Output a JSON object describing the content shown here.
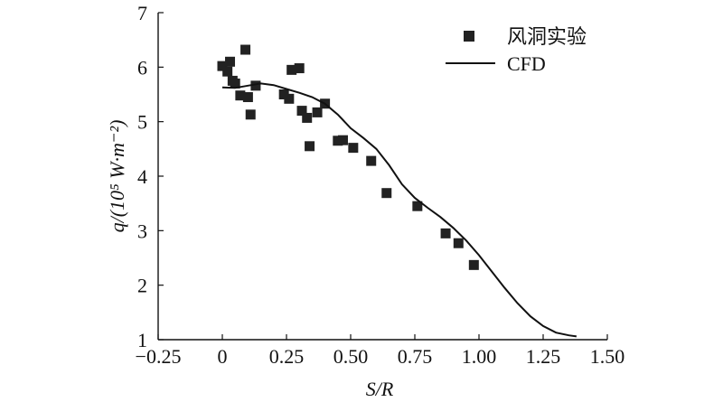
{
  "chart_data": {
    "type": "scatter",
    "xlabel": "S/R",
    "ylabel": "q/(10⁵ W·m⁻²)",
    "xlim": [
      -0.25,
      1.5
    ],
    "ylim": [
      1,
      7
    ],
    "x_ticks": [
      -0.25,
      0,
      0.25,
      0.5,
      0.75,
      1.0,
      1.25,
      1.5
    ],
    "x_tick_labels": [
      "−0.25",
      "0",
      "0.25",
      "0.50",
      "0.75",
      "1.00",
      "1.25",
      "1.50"
    ],
    "y_ticks": [
      1,
      2,
      3,
      4,
      5,
      6,
      7
    ],
    "y_tick_labels": [
      "1",
      "2",
      "3",
      "4",
      "5",
      "6",
      "7"
    ],
    "grid": false,
    "legend_position": "top-right",
    "series": [
      {
        "name": "风洞实验",
        "kind": "scatter",
        "marker": "square",
        "color": "#222222",
        "points": [
          [
            0.0,
            6.02
          ],
          [
            0.02,
            5.92
          ],
          [
            0.03,
            6.1
          ],
          [
            0.04,
            5.75
          ],
          [
            0.05,
            5.7
          ],
          [
            0.07,
            5.48
          ],
          [
            0.09,
            6.32
          ],
          [
            0.1,
            5.45
          ],
          [
            0.11,
            5.13
          ],
          [
            0.13,
            5.66
          ],
          [
            0.24,
            5.5
          ],
          [
            0.26,
            5.42
          ],
          [
            0.27,
            5.95
          ],
          [
            0.3,
            5.98
          ],
          [
            0.31,
            5.2
          ],
          [
            0.33,
            5.07
          ],
          [
            0.34,
            4.55
          ],
          [
            0.37,
            5.17
          ],
          [
            0.4,
            5.33
          ],
          [
            0.45,
            4.65
          ],
          [
            0.47,
            4.66
          ],
          [
            0.51,
            4.52
          ],
          [
            0.58,
            4.28
          ],
          [
            0.64,
            3.69
          ],
          [
            0.76,
            3.45
          ],
          [
            0.87,
            2.95
          ],
          [
            0.92,
            2.77
          ],
          [
            0.98,
            2.37
          ]
        ]
      },
      {
        "name": "CFD",
        "kind": "line",
        "color": "#111111",
        "points": [
          [
            0.0,
            5.63
          ],
          [
            0.05,
            5.62
          ],
          [
            0.1,
            5.66
          ],
          [
            0.15,
            5.7
          ],
          [
            0.2,
            5.67
          ],
          [
            0.25,
            5.6
          ],
          [
            0.3,
            5.53
          ],
          [
            0.35,
            5.45
          ],
          [
            0.4,
            5.33
          ],
          [
            0.45,
            5.13
          ],
          [
            0.5,
            4.88
          ],
          [
            0.55,
            4.7
          ],
          [
            0.6,
            4.5
          ],
          [
            0.65,
            4.2
          ],
          [
            0.7,
            3.85
          ],
          [
            0.75,
            3.6
          ],
          [
            0.8,
            3.42
          ],
          [
            0.85,
            3.25
          ],
          [
            0.9,
            3.05
          ],
          [
            0.95,
            2.82
          ],
          [
            1.0,
            2.55
          ],
          [
            1.05,
            2.25
          ],
          [
            1.1,
            1.95
          ],
          [
            1.15,
            1.67
          ],
          [
            1.2,
            1.43
          ],
          [
            1.25,
            1.25
          ],
          [
            1.3,
            1.13
          ],
          [
            1.35,
            1.08
          ],
          [
            1.38,
            1.06
          ]
        ]
      }
    ]
  }
}
